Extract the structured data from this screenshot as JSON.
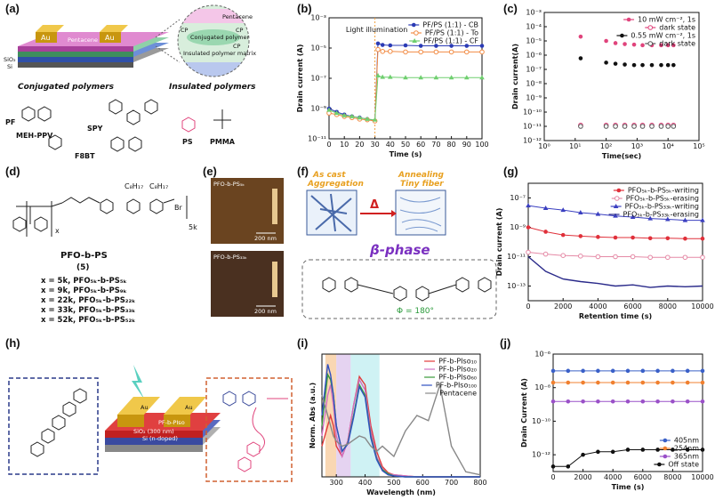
{
  "figure": {
    "a": {
      "label": "(a)",
      "device": [
        "Au",
        "Au",
        "Pentacene",
        "SiO₂",
        "Si"
      ],
      "zoom": [
        "Pentacene",
        "Conjugated polymer",
        "Insulated polymer matrix",
        "CP",
        "CP",
        "CP"
      ],
      "captions": [
        "Conjugated polymers",
        "Insulated polymers"
      ],
      "polymers": [
        "PF",
        "MEH-PPV",
        "SPY",
        "F8BT",
        "PS",
        "PMMA"
      ]
    },
    "d": {
      "label": "(d)",
      "structure": [
        "x",
        "5k",
        "C₈H₁₇",
        "C₈H₁₇",
        "Br"
      ],
      "name": "PFO-b-PS",
      "number": "(5)",
      "variants": [
        "x = 5k, PFO₅ₖ-b-PS₅ₖ",
        "x = 9k, PFO₅ₖ-b-PS₉ₖ",
        "x = 22k, PFO₅ₖ-b-PS₂₂ₖ",
        "x = 33k, PFO₅ₖ-b-PS₃₃ₖ",
        "x = 52k, PFO₅ₖ-b-PS₅₂ₖ"
      ]
    },
    "e": {
      "label": "(e)",
      "images": [
        {
          "title": "PFO-b-PS₅ₖ",
          "scale": "200 nm"
        },
        {
          "title": "PFO-b-PS₃₃ₖ",
          "scale": "200 nm"
        }
      ]
    },
    "f": {
      "label": "(f)",
      "left": [
        "As cast",
        "Aggregation"
      ],
      "right": [
        "Annealing",
        "Tiny fiber"
      ],
      "arrow": "Δ",
      "phase": "β-phase",
      "angle": "Φ = 180°"
    },
    "h": {
      "label": "(h)",
      "device": [
        "Au",
        "Au",
        "PF-b-PIso",
        "SiO₂ (300 nm)",
        "Si (n-doped)"
      ]
    }
  },
  "chart_data": [
    {
      "label": "(b)",
      "type": "line",
      "xlabel": "Time (s)",
      "ylabel": "Drain current (A)",
      "log_y": true,
      "xlim": [
        0,
        100
      ],
      "xticks": [
        0,
        10,
        20,
        30,
        40,
        50,
        60,
        70,
        80,
        90,
        100
      ],
      "ylim": [
        1e-11,
        0.001
      ],
      "yticks": [
        {
          "value": 1e-11,
          "label": "10⁻¹¹"
        },
        {
          "value": 1e-09,
          "label": "10⁻⁹"
        },
        {
          "value": 1e-07,
          "label": "10⁻⁷"
        },
        {
          "value": 1e-05,
          "label": "10⁻⁵"
        },
        {
          "value": 0.001,
          "label": "10⁻³"
        }
      ],
      "legend": "upper right",
      "annotation": {
        "text": "Light illumination",
        "x": 30
      },
      "x": [
        0,
        5,
        10,
        15,
        20,
        25,
        30,
        32,
        35,
        40,
        50,
        60,
        70,
        80,
        90,
        100
      ],
      "series": [
        {
          "name": "PF/PS (1:1) - CB",
          "color": "#2b3bb5",
          "marker": "circle",
          "values": [
            1e-09,
            6e-10,
            4e-10,
            3e-10,
            2.5e-10,
            2e-10,
            1.5e-10,
            2e-05,
            1.6e-05,
            1.5e-05,
            1.5e-05,
            1.4e-05,
            1.4e-05,
            1.4e-05,
            1.4e-05,
            1.4e-05
          ]
        },
        {
          "name": "PF/PS (1:1) - To",
          "color": "#f28c45",
          "marker": "open-circle",
          "values": [
            5e-10,
            4e-10,
            3e-10,
            2.5e-10,
            2e-10,
            1.8e-10,
            1.5e-10,
            8e-06,
            6e-06,
            6e-06,
            5.5e-06,
            5.5e-06,
            5.5e-06,
            5.5e-06,
            5.5e-06,
            5.5e-06
          ]
        },
        {
          "name": "PF/PS (1:1) - CF",
          "color": "#6fcf6f",
          "marker": "triangle",
          "values": [
            8e-10,
            5e-10,
            3.5e-10,
            3e-10,
            2.5e-10,
            2e-10,
            1.8e-10,
            1.5e-07,
            1.2e-07,
            1.2e-07,
            1.1e-07,
            1.1e-07,
            1.1e-07,
            1.1e-07,
            1.1e-07,
            1.1e-07
          ]
        }
      ]
    },
    {
      "label": "(c)",
      "type": "scatter",
      "xlabel": "Time(sec)",
      "ylabel": "Drain current(A)",
      "log_x": true,
      "log_y": true,
      "xlim": [
        1,
        100000
      ],
      "xticks": [
        {
          "value": 1,
          "label": "10⁰"
        },
        {
          "value": 10,
          "label": "10¹"
        },
        {
          "value": 100,
          "label": "10²"
        },
        {
          "value": 1000,
          "label": "10³"
        },
        {
          "value": 10000,
          "label": "10⁴"
        },
        {
          "value": 100000,
          "label": "10⁵"
        }
      ],
      "ylim": [
        1e-12,
        0.001
      ],
      "yticks": [
        {
          "value": 1e-12,
          "label": "10⁻¹²"
        },
        {
          "value": 1e-11,
          "label": "10⁻¹¹"
        },
        {
          "value": 1e-10,
          "label": "10⁻¹⁰"
        },
        {
          "value": 1e-09,
          "label": "10⁻⁹"
        },
        {
          "value": 1e-08,
          "label": "10⁻⁸"
        },
        {
          "value": 1e-07,
          "label": "10⁻⁷"
        },
        {
          "value": 1e-06,
          "label": "10⁻⁶"
        },
        {
          "value": 1e-05,
          "label": "10⁻⁵"
        },
        {
          "value": 0.0001,
          "label": "10⁻⁴"
        },
        {
          "value": 0.001,
          "label": "10⁻³"
        }
      ],
      "legend": "upper right",
      "series": [
        {
          "name": "10 mW cm⁻², 1s",
          "color": "#e0447c",
          "marker": "circle",
          "x": [
            15,
            100,
            200,
            400,
            800,
            1500,
            3000,
            6000,
            10000,
            15000
          ],
          "values": [
            2e-05,
            1e-05,
            7e-06,
            6e-06,
            5.5e-06,
            5e-06,
            5e-06,
            5e-06,
            5e-06,
            5e-06
          ]
        },
        {
          "name": "dark state",
          "color": "#e0447c",
          "marker": "open-circle",
          "x": [
            15,
            100,
            200,
            400,
            800,
            1500,
            3000,
            6000,
            10000,
            15000
          ],
          "values": [
            1.2e-11,
            1.2e-11,
            1.2e-11,
            1.2e-11,
            1.2e-11,
            1.2e-11,
            1.2e-11,
            1.2e-11,
            1.2e-11,
            1.2e-11
          ]
        },
        {
          "name": "0.55 mW cm⁻², 1s",
          "color": "#111111",
          "marker": "circle",
          "x": [
            15,
            100,
            200,
            400,
            800,
            1500,
            3000,
            6000,
            10000,
            15000
          ],
          "values": [
            6e-07,
            3e-07,
            2.5e-07,
            2.2e-07,
            2e-07,
            2e-07,
            2e-07,
            2e-07,
            2e-07,
            2e-07
          ]
        },
        {
          "name": "dark state",
          "color": "#555555",
          "marker": "open-circle",
          "x": [
            15,
            100,
            200,
            400,
            800,
            1500,
            3000,
            6000,
            10000,
            15000
          ],
          "values": [
            1e-11,
            1e-11,
            1e-11,
            1e-11,
            1e-11,
            1e-11,
            1e-11,
            1e-11,
            1e-11,
            1e-11
          ]
        }
      ]
    },
    {
      "label": "(g)",
      "type": "line",
      "xlabel": "Retention time (s)",
      "ylabel": "Drain current (A)",
      "log_y": true,
      "xlim": [
        0,
        10000
      ],
      "xticks": [
        0,
        2000,
        4000,
        6000,
        8000,
        10000
      ],
      "ylim": [
        1e-14,
        1e-06
      ],
      "yticks": [
        {
          "value": 1e-13,
          "label": "10⁻¹³"
        },
        {
          "value": 1e-11,
          "label": "10⁻¹¹"
        },
        {
          "value": 1e-09,
          "label": "10⁻⁹"
        },
        {
          "value": 1e-07,
          "label": "10⁻⁷"
        }
      ],
      "legend": "upper right",
      "x": [
        0,
        1000,
        2000,
        3000,
        4000,
        5000,
        6000,
        7000,
        8000,
        9000,
        10000
      ],
      "series": [
        {
          "name": "PFO₅ₖ-b-PS₅ₖ-writing",
          "color": "#e0303a",
          "marker": "circle",
          "values": [
            1e-09,
            5e-10,
            3e-10,
            2.5e-10,
            2.2e-10,
            2e-10,
            2e-10,
            1.8e-10,
            1.8e-10,
            1.7e-10,
            1.7e-10
          ]
        },
        {
          "name": "PFO₅ₖ-b-PS₅ₖ-erasing",
          "color": "#e58aa6",
          "marker": "open-circle",
          "values": [
            2e-11,
            1.5e-11,
            1.2e-11,
            1.1e-11,
            1e-11,
            1e-11,
            1e-11,
            9e-12,
            9e-12,
            9e-12,
            9e-12
          ]
        },
        {
          "name": "PFO₅ₖ-b-PS₃₃ₖ-writing",
          "color": "#3a3fc0",
          "marker": "triangle",
          "values": [
            3e-08,
            2e-08,
            1.5e-08,
            1e-08,
            8e-09,
            6e-09,
            5e-09,
            4e-09,
            3.5e-09,
            3e-09,
            3e-09
          ]
        },
        {
          "name": "PFO₅ₖ-b-PS₃₃ₖ-erasing",
          "color": "#2a2a8a",
          "marker": "none",
          "values": [
            1e-11,
            1e-12,
            3e-13,
            2e-13,
            1.5e-13,
            1e-13,
            1.2e-13,
            8e-14,
            1e-13,
            9e-14,
            1e-13
          ]
        }
      ]
    },
    {
      "label": "(i)",
      "type": "line",
      "xlabel": "Wavelength (nm)",
      "ylabel": "Norm. Abs (a.u.)",
      "xlim": [
        250,
        800
      ],
      "xticks": [
        300,
        400,
        500,
        600,
        700,
        800
      ],
      "ylim": [
        0,
        1.2
      ],
      "yticks": [],
      "legend": "upper right",
      "bands": [
        {
          "from": 262,
          "to": 300,
          "color": "#f7c99a"
        },
        {
          "from": 300,
          "to": 350,
          "color": "#dcc4ec"
        },
        {
          "from": 350,
          "to": 450,
          "color": "#bfeef0"
        }
      ],
      "x": [
        250,
        270,
        280,
        290,
        300,
        320,
        340,
        360,
        380,
        400,
        420,
        440,
        460,
        480,
        500,
        540,
        580,
        620,
        660,
        700,
        750,
        800
      ],
      "series": [
        {
          "name": "PF-b-PIso₁₀",
          "color": "#e23b3b",
          "marker": "none",
          "values": [
            0.3,
            0.5,
            0.6,
            0.5,
            0.3,
            0.2,
            0.35,
            0.7,
            0.98,
            0.9,
            0.5,
            0.25,
            0.1,
            0.04,
            0.02,
            0.01,
            0,
            0,
            0,
            0,
            0,
            0
          ]
        },
        {
          "name": "PF-b-PIso₂₀",
          "color": "#d070c0",
          "marker": "none",
          "values": [
            0.4,
            0.8,
            0.9,
            0.7,
            0.4,
            0.2,
            0.35,
            0.7,
            0.95,
            0.85,
            0.45,
            0.2,
            0.08,
            0.03,
            0.02,
            0.01,
            0,
            0,
            0,
            0,
            0,
            0
          ]
        },
        {
          "name": "PF-b-PIso₆₀",
          "color": "#3a9a3a",
          "marker": "none",
          "values": [
            0.5,
            1.0,
            0.95,
            0.8,
            0.5,
            0.25,
            0.33,
            0.6,
            0.9,
            0.8,
            0.4,
            0.18,
            0.07,
            0.03,
            0.01,
            0,
            0,
            0,
            0,
            0,
            0,
            0
          ]
        },
        {
          "name": "PF-b-PIso₁₀₀",
          "color": "#3050c0",
          "marker": "none",
          "values": [
            0.6,
            1.1,
            1.0,
            0.8,
            0.5,
            0.25,
            0.32,
            0.58,
            0.88,
            0.78,
            0.38,
            0.17,
            0.06,
            0.02,
            0.01,
            0,
            0,
            0,
            0,
            0,
            0,
            0
          ]
        },
        {
          "name": "Pentacene",
          "color": "#888888",
          "marker": "none",
          "values": [
            0.8,
            0.6,
            0.5,
            0.4,
            0.35,
            0.3,
            0.32,
            0.36,
            0.4,
            0.38,
            0.3,
            0.25,
            0.3,
            0.25,
            0.2,
            0.45,
            0.6,
            0.55,
            0.9,
            0.3,
            0.05,
            0.02
          ]
        }
      ]
    },
    {
      "label": "(j)",
      "type": "line",
      "xlabel": "Time (s)",
      "ylabel": "Drain Current (A)",
      "log_y": true,
      "xlim": [
        0,
        10000
      ],
      "xticks": [
        0,
        2000,
        4000,
        6000,
        8000,
        10000
      ],
      "ylim": [
        1e-13,
        1e-06
      ],
      "yticks": [
        {
          "value": 1e-12,
          "label": "10⁻¹²"
        },
        {
          "value": 1e-10,
          "label": "10⁻¹⁰"
        },
        {
          "value": 1e-08,
          "label": "10⁻⁸"
        },
        {
          "value": 1e-06,
          "label": "10⁻⁶"
        }
      ],
      "legend": "lower right",
      "x": [
        0,
        1000,
        2000,
        3000,
        4000,
        5000,
        6000,
        7000,
        8000,
        9000,
        10000
      ],
      "series": [
        {
          "name": "405nm",
          "color": "#3a60c8",
          "marker": "circle",
          "values": [
            1e-07,
            1e-07,
            1e-07,
            1e-07,
            1e-07,
            1e-07,
            1e-07,
            1e-07,
            1e-07,
            1e-07,
            1e-07
          ]
        },
        {
          "name": "254nm",
          "color": "#f08030",
          "marker": "circle",
          "values": [
            2e-08,
            2e-08,
            2e-08,
            2e-08,
            2e-08,
            2e-08,
            2e-08,
            2e-08,
            2e-08,
            2e-08,
            2e-08
          ]
        },
        {
          "name": "365nm",
          "color": "#9a50c8",
          "marker": "circle",
          "values": [
            1.5e-09,
            1.5e-09,
            1.5e-09,
            1.5e-09,
            1.5e-09,
            1.5e-09,
            1.5e-09,
            1.5e-09,
            1.5e-09,
            1.5e-09,
            1.5e-09
          ]
        },
        {
          "name": "Off state",
          "color": "#111111",
          "marker": "circle",
          "values": [
            2e-13,
            2e-13,
            1e-12,
            1.5e-12,
            1.5e-12,
            2e-12,
            2e-12,
            2e-12,
            2e-12,
            2e-12,
            2e-12
          ]
        }
      ]
    }
  ]
}
